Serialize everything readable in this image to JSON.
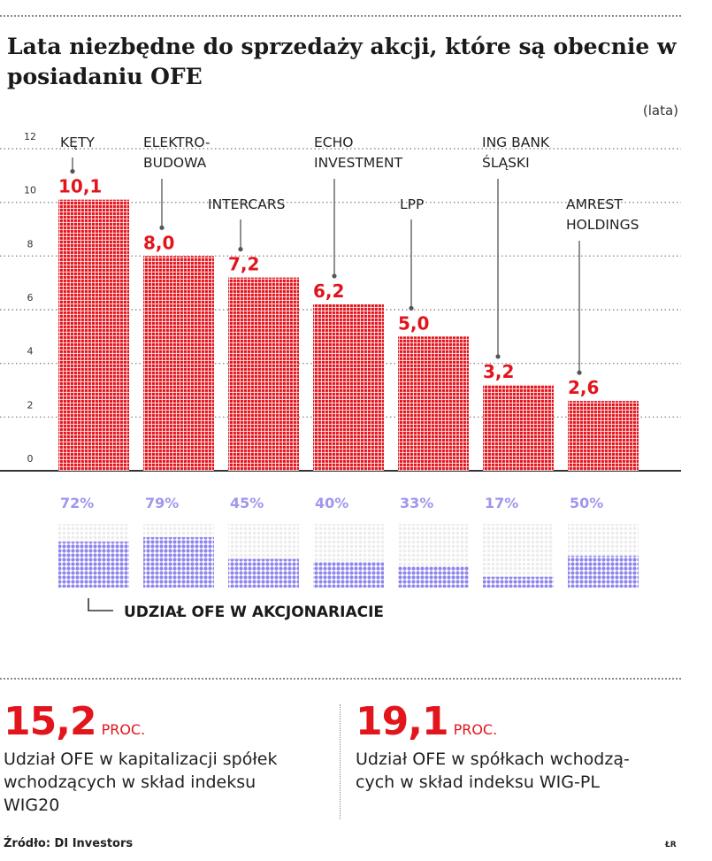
{
  "title": "Lata niezbędne do sprzedaży akcji, które są obecnie w posiadaniu OFE",
  "unit": "(lata)",
  "chart_data": {
    "type": "bar",
    "categories": [
      [
        "KĘTY"
      ],
      [
        "ELEKTRO-",
        "BUDOWA"
      ],
      [
        "INTERCARS"
      ],
      [
        "ECHO",
        "INVESTMENT"
      ],
      [
        "LPP"
      ],
      [
        "ING BANK",
        "ŚLĄSKI"
      ],
      [
        "AMREST",
        "HOLDINGS"
      ]
    ],
    "values": [
      10.1,
      8.0,
      7.2,
      6.2,
      5.0,
      3.2,
      2.6
    ],
    "value_labels": [
      "10,1",
      "8,0",
      "7,2",
      "6,2",
      "5,0",
      "3,2",
      "2,6"
    ],
    "yticks": [
      "0",
      "2",
      "4",
      "6",
      "8",
      "10",
      "12"
    ],
    "ylim": [
      0,
      12
    ],
    "grid": true,
    "color": "#e2141c",
    "ofe_share": {
      "label": "UDZIAŁ OFE W AKCJONARIACIE",
      "values": [
        72,
        79,
        45,
        40,
        33,
        17,
        50
      ],
      "value_labels": [
        "72%",
        "79%",
        "45%",
        "40%",
        "33%",
        "17%",
        "50%"
      ],
      "color": "#8f86ec"
    }
  },
  "stats": [
    {
      "value": "15,2",
      "unit": "PROC.",
      "desc": [
        "Udział OFE w kapitalizacji spółek",
        "wchodzących w skład indeksu",
        "WIG20"
      ]
    },
    {
      "value": "19,1",
      "unit": "PROC.",
      "desc": [
        "Udział OFE w spółkach wchodzą-",
        "cych w skład indeksu WIG-PL"
      ]
    }
  ],
  "source": "Źródło: DI Investors",
  "author": "ŁR"
}
